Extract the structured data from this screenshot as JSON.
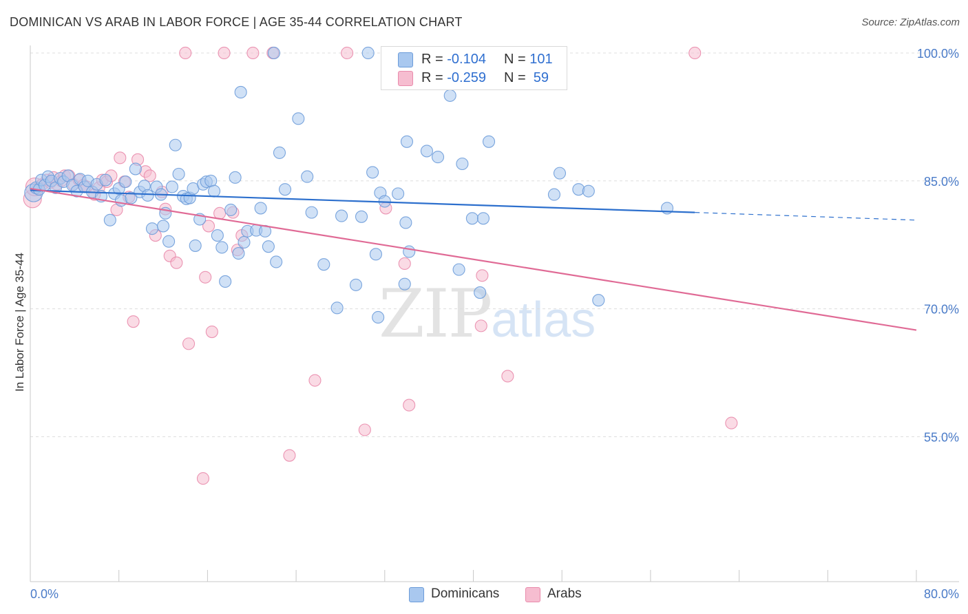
{
  "header": {
    "title": "DOMINICAN VS ARAB IN LABOR FORCE | AGE 35-44 CORRELATION CHART",
    "source": "Source: ZipAtlas.com"
  },
  "legend_top": {
    "rows": [
      {
        "r_label": "R = ",
        "r_value": "-0.104",
        "n_label": "N = ",
        "n_value": "101"
      },
      {
        "r_label": "R = ",
        "r_value": "-0.259",
        "n_label": "N = ",
        "n_value": " 59"
      }
    ]
  },
  "legend_bottom": {
    "items": [
      "Dominicans",
      "Arabs"
    ]
  },
  "watermark": {
    "part1": "ZIP",
    "part2": "atlas"
  },
  "colors": {
    "dominicans_fill": "#a9c8ef",
    "dominicans_stroke": "#6b9bd9",
    "dominicans_line": "#2c6fcd",
    "arabs_fill": "#f6bdd0",
    "arabs_stroke": "#e98aab",
    "arabs_line": "#e06a95",
    "tick_label": "#4a7bc8",
    "grid": "#dddddd"
  },
  "chart_data": {
    "type": "scatter",
    "title": "DOMINICAN VS ARAB IN LABOR FORCE | AGE 35-44 CORRELATION CHART",
    "xlabel": "",
    "ylabel": "In Labor Force | Age 35-44",
    "xlim": [
      0,
      80
    ],
    "ylim": [
      38,
      102.5
    ],
    "x_tick_labels": [
      "0.0%",
      "80.0%"
    ],
    "y_ticks": [
      55,
      70,
      85,
      100
    ],
    "y_tick_labels": [
      "55.0%",
      "70.0%",
      "85.0%",
      "100.0%"
    ],
    "grid": true,
    "legend_position": "top-center",
    "series": [
      {
        "name": "Dominicans",
        "R": -0.104,
        "N": 101,
        "trend": {
          "x0": 0,
          "y0": 83.9,
          "x1": 60.0,
          "y1": 81.3,
          "dashed_to_x": 80,
          "dashed_to_y": 80.4
        },
        "points": [
          [
            0.3,
            83.6
          ],
          [
            0.5,
            84.2
          ],
          [
            0.8,
            84.0
          ],
          [
            1.0,
            85.1
          ],
          [
            1.3,
            84.5
          ],
          [
            1.6,
            85.5
          ],
          [
            1.9,
            85.0
          ],
          [
            2.3,
            84.2
          ],
          [
            2.7,
            85.3
          ],
          [
            3.0,
            84.9
          ],
          [
            3.4,
            85.6
          ],
          [
            3.8,
            84.5
          ],
          [
            4.2,
            83.8
          ],
          [
            4.5,
            85.2
          ],
          [
            4.9,
            84.3
          ],
          [
            5.2,
            85.0
          ],
          [
            5.6,
            83.7
          ],
          [
            6.0,
            84.6
          ],
          [
            6.4,
            83.2
          ],
          [
            6.8,
            85.1
          ],
          [
            7.2,
            80.4
          ],
          [
            7.6,
            83.5
          ],
          [
            8.0,
            84.1
          ],
          [
            8.2,
            82.7
          ],
          [
            8.6,
            84.9
          ],
          [
            9.1,
            83.0
          ],
          [
            9.5,
            86.4
          ],
          [
            9.9,
            83.7
          ],
          [
            10.3,
            84.4
          ],
          [
            10.6,
            83.3
          ],
          [
            11.0,
            79.4
          ],
          [
            11.4,
            84.3
          ],
          [
            11.8,
            83.4
          ],
          [
            12.0,
            79.7
          ],
          [
            12.2,
            81.2
          ],
          [
            12.5,
            77.9
          ],
          [
            12.8,
            84.3
          ],
          [
            13.1,
            89.2
          ],
          [
            13.4,
            85.8
          ],
          [
            13.8,
            83.2
          ],
          [
            14.1,
            82.9
          ],
          [
            14.4,
            83.0
          ],
          [
            14.7,
            84.1
          ],
          [
            14.9,
            77.4
          ],
          [
            15.3,
            80.5
          ],
          [
            15.6,
            84.6
          ],
          [
            15.9,
            84.9
          ],
          [
            16.3,
            85.0
          ],
          [
            16.6,
            83.8
          ],
          [
            16.9,
            78.6
          ],
          [
            17.3,
            77.2
          ],
          [
            17.6,
            73.2
          ],
          [
            18.1,
            81.6
          ],
          [
            18.5,
            85.4
          ],
          [
            18.8,
            76.5
          ],
          [
            19.0,
            95.4
          ],
          [
            19.3,
            77.8
          ],
          [
            19.6,
            79.1
          ],
          [
            20.4,
            79.2
          ],
          [
            20.8,
            81.8
          ],
          [
            21.2,
            79.1
          ],
          [
            21.5,
            77.3
          ],
          [
            22.0,
            100.0
          ],
          [
            22.2,
            75.5
          ],
          [
            22.5,
            88.3
          ],
          [
            23.0,
            84.0
          ],
          [
            24.2,
            92.3
          ],
          [
            25.0,
            85.5
          ],
          [
            25.4,
            81.3
          ],
          [
            26.5,
            75.2
          ],
          [
            27.7,
            70.1
          ],
          [
            28.1,
            80.9
          ],
          [
            29.4,
            72.8
          ],
          [
            29.9,
            80.8
          ],
          [
            30.5,
            100.0
          ],
          [
            30.9,
            86.0
          ],
          [
            31.2,
            76.4
          ],
          [
            31.4,
            69.0
          ],
          [
            31.6,
            83.6
          ],
          [
            32.0,
            82.6
          ],
          [
            33.2,
            83.5
          ],
          [
            33.8,
            72.9
          ],
          [
            33.9,
            80.1
          ],
          [
            34.0,
            89.6
          ],
          [
            34.2,
            76.7
          ],
          [
            35.8,
            88.5
          ],
          [
            36.8,
            87.8
          ],
          [
            37.9,
            95.0
          ],
          [
            38.7,
            74.6
          ],
          [
            39.0,
            87.0
          ],
          [
            39.9,
            80.6
          ],
          [
            40.6,
            71.9
          ],
          [
            40.9,
            80.6
          ],
          [
            41.4,
            89.6
          ],
          [
            47.3,
            83.4
          ],
          [
            47.8,
            85.9
          ],
          [
            49.5,
            84.0
          ],
          [
            50.4,
            83.8
          ],
          [
            51.3,
            71.0
          ],
          [
            57.5,
            81.8
          ]
        ]
      },
      {
        "name": "Arabs",
        "R": -0.259,
        "N": 59,
        "trend": {
          "x0": 0,
          "y0": 84.1,
          "x1": 80,
          "y1": 67.5
        },
        "points": [
          [
            0.2,
            82.9
          ],
          [
            0.4,
            84.3
          ],
          [
            0.7,
            84.1
          ],
          [
            1.1,
            84.6
          ],
          [
            1.5,
            85.1
          ],
          [
            1.8,
            84.8
          ],
          [
            2.1,
            85.4
          ],
          [
            2.4,
            84.6
          ],
          [
            2.8,
            85.0
          ],
          [
            3.1,
            85.6
          ],
          [
            3.5,
            85.6
          ],
          [
            3.9,
            84.6
          ],
          [
            4.4,
            85.1
          ],
          [
            4.8,
            84.5
          ],
          [
            5.1,
            84.3
          ],
          [
            5.8,
            83.4
          ],
          [
            6.2,
            84.2
          ],
          [
            6.5,
            85.1
          ],
          [
            6.9,
            84.9
          ],
          [
            7.3,
            85.6
          ],
          [
            7.8,
            81.6
          ],
          [
            8.1,
            87.7
          ],
          [
            8.5,
            84.9
          ],
          [
            8.9,
            83.1
          ],
          [
            9.3,
            68.5
          ],
          [
            9.7,
            87.5
          ],
          [
            10.4,
            86.1
          ],
          [
            10.8,
            85.6
          ],
          [
            11.3,
            78.6
          ],
          [
            11.9,
            83.7
          ],
          [
            12.2,
            81.7
          ],
          [
            12.6,
            76.2
          ],
          [
            13.2,
            75.4
          ],
          [
            14.0,
            100.0
          ],
          [
            14.3,
            65.9
          ],
          [
            15.6,
            50.1
          ],
          [
            15.8,
            73.7
          ],
          [
            16.1,
            79.7
          ],
          [
            16.4,
            67.3
          ],
          [
            17.1,
            81.2
          ],
          [
            17.5,
            100.0
          ],
          [
            18.3,
            81.3
          ],
          [
            18.7,
            76.9
          ],
          [
            19.1,
            78.6
          ],
          [
            20.1,
            100.0
          ],
          [
            21.9,
            100.0
          ],
          [
            23.4,
            52.8
          ],
          [
            25.7,
            61.6
          ],
          [
            28.6,
            100.0
          ],
          [
            30.2,
            55.8
          ],
          [
            32.1,
            81.8
          ],
          [
            33.8,
            75.3
          ],
          [
            34.2,
            58.7
          ],
          [
            40.7,
            68.0
          ],
          [
            40.8,
            73.9
          ],
          [
            43.1,
            62.1
          ],
          [
            47.0,
            100.0
          ],
          [
            60.0,
            100.0
          ],
          [
            63.3,
            56.6
          ]
        ]
      }
    ]
  }
}
